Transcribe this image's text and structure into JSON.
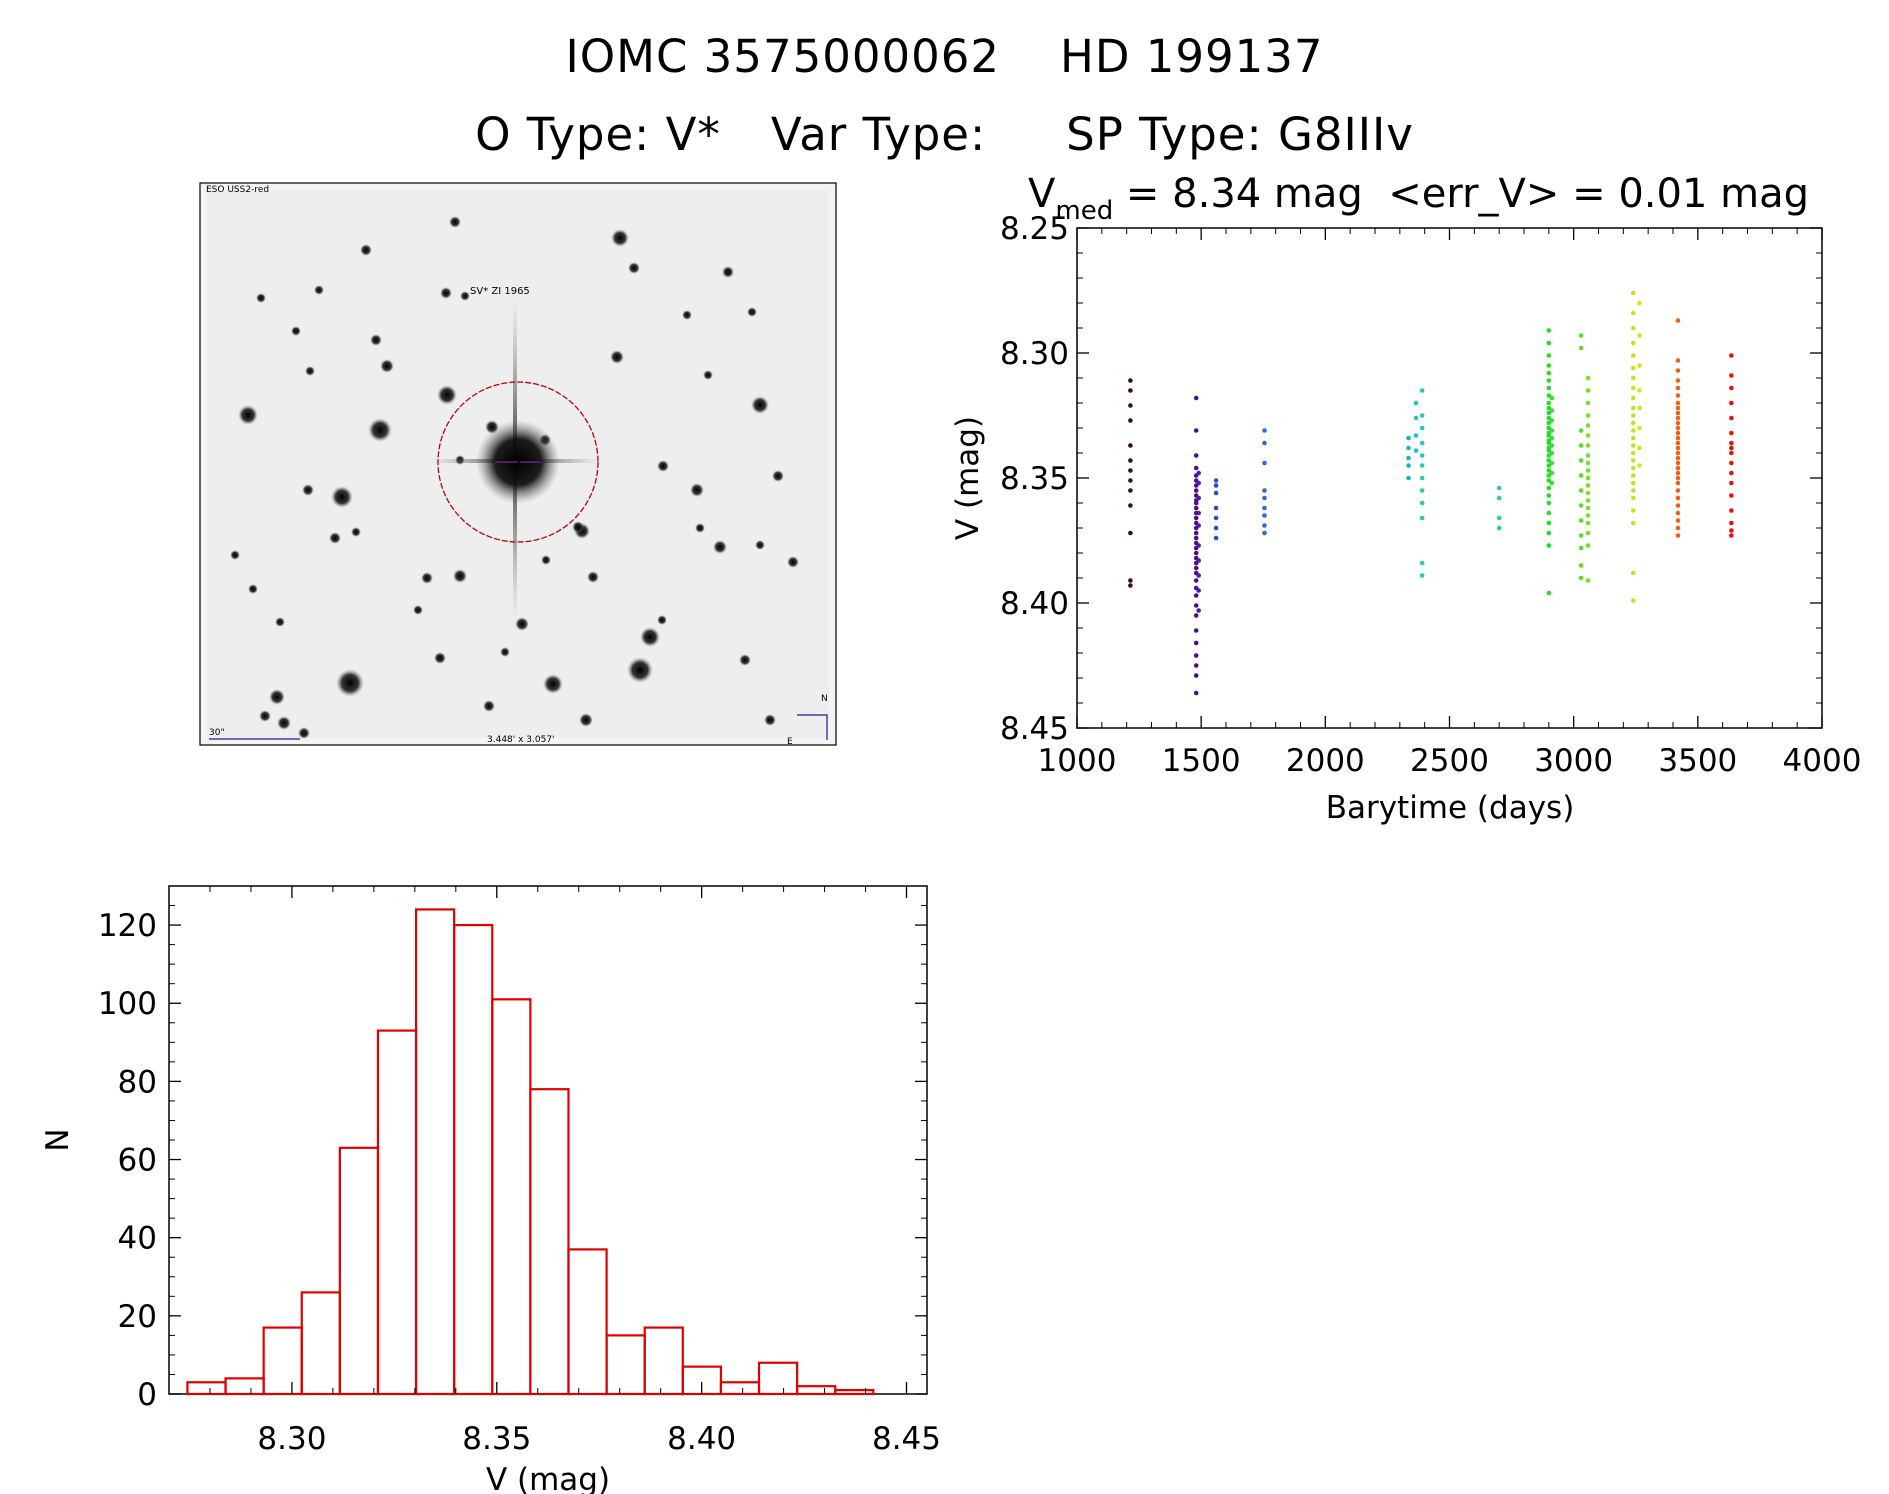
{
  "header": {
    "object_id": "IOMC 3575000062",
    "hd_name": "HD 199137",
    "o_type": "O Type: V*",
    "var_type": "Var Type:",
    "sp_type": "SP Type: G8IIIv"
  },
  "finder": {
    "top_left_label": "ESO USS2-red",
    "target_label": "SV* ZI 1965",
    "scale_label": "30\"",
    "size_label": "3.448' x 3.057'",
    "compass_n": "N",
    "compass_e": "E"
  },
  "chart_data": [
    {
      "type": "scatter",
      "title_prefix": "V",
      "title_subscript": "med",
      "title_rest": " = 8.34 mag  <err_V> = 0.01 mag",
      "xlabel": "Barytime (days)",
      "ylabel": "V (mag)",
      "xlim": [
        1000,
        4000
      ],
      "ylim": [
        8.45,
        8.25
      ],
      "y_inverted": true,
      "xticks": [
        "1000",
        "1500",
        "2000",
        "2500",
        "3000",
        "3500",
        "4000"
      ],
      "yticks": [
        "8.25",
        "8.30",
        "8.35",
        "8.40",
        "8.45"
      ],
      "groups": [
        {
          "x": 1215,
          "color": "#3a0a2a",
          "y": [
            8.311,
            8.315,
            8.321,
            8.327,
            8.337,
            8.343,
            8.347,
            8.351,
            8.355,
            8.361,
            8.372,
            8.391,
            8.393
          ]
        },
        {
          "x": 1480,
          "color": "#4b0f8a",
          "y": [
            8.318,
            8.331,
            8.341,
            8.346,
            8.349,
            8.351,
            8.353,
            8.355,
            8.357,
            8.359,
            8.36,
            8.362,
            8.364,
            8.366,
            8.368,
            8.37,
            8.372,
            8.374,
            8.376,
            8.378,
            8.38,
            8.382,
            8.384,
            8.386,
            8.388,
            8.391,
            8.394,
            8.397,
            8.401,
            8.405,
            8.411,
            8.416,
            8.421,
            8.425,
            8.429,
            8.436
          ]
        },
        {
          "x": 1490,
          "color": "#5a1aa0",
          "y": [
            8.348,
            8.352,
            8.358,
            8.364,
            8.369,
            8.377,
            8.383,
            8.389,
            8.395,
            8.403
          ]
        },
        {
          "x": 1560,
          "color": "#2a4bd0",
          "y": [
            8.351,
            8.353,
            8.356,
            8.362,
            8.366,
            8.37,
            8.374
          ]
        },
        {
          "x": 1755,
          "color": "#2a6ae0",
          "y": [
            8.331,
            8.336,
            8.344,
            8.355,
            8.358,
            8.362,
            8.365,
            8.369,
            8.372
          ]
        },
        {
          "x": 2335,
          "color": "#19b0d0",
          "y": [
            8.334,
            8.338,
            8.342,
            8.345,
            8.35
          ]
        },
        {
          "x": 2365,
          "color": "#1ac8c8",
          "y": [
            8.32,
            8.326,
            8.333,
            8.339
          ]
        },
        {
          "x": 2390,
          "color": "#1ad0b0",
          "y": [
            8.315,
            8.325,
            8.33,
            8.336,
            8.341,
            8.345,
            8.35,
            8.355,
            8.36,
            8.366,
            8.384,
            8.389
          ]
        },
        {
          "x": 2700,
          "color": "#2ad090",
          "y": [
            8.354,
            8.358,
            8.366,
            8.37
          ]
        },
        {
          "x": 2900,
          "color": "#22dd22",
          "y": [
            8.291,
            8.296,
            8.301,
            8.305,
            8.308,
            8.311,
            8.314,
            8.317,
            8.32,
            8.322,
            8.324,
            8.326,
            8.328,
            8.33,
            8.332,
            8.333,
            8.335,
            8.336,
            8.338,
            8.339,
            8.341,
            8.343,
            8.345,
            8.347,
            8.349,
            8.351,
            8.354,
            8.357,
            8.36,
            8.364,
            8.368,
            8.372,
            8.377,
            8.396
          ]
        },
        {
          "x": 2912,
          "color": "#33e033",
          "y": [
            8.318,
            8.323,
            8.327,
            8.331,
            8.334,
            8.337,
            8.34,
            8.344,
            8.348,
            8.352
          ]
        },
        {
          "x": 3030,
          "color": "#55e020",
          "y": [
            8.293,
            8.298,
            8.331,
            8.337,
            8.343,
            8.349,
            8.355,
            8.361,
            8.367,
            8.373,
            8.378,
            8.385,
            8.39
          ]
        },
        {
          "x": 3058,
          "color": "#77e020",
          "y": [
            8.31,
            8.315,
            8.32,
            8.325,
            8.329,
            8.333,
            8.337,
            8.341,
            8.344,
            8.347,
            8.35,
            8.353,
            8.356,
            8.359,
            8.362,
            8.365,
            8.368,
            8.372,
            8.377,
            8.391
          ]
        },
        {
          "x": 3240,
          "color": "#c8e020",
          "y": [
            8.276,
            8.284,
            8.29,
            8.296,
            8.301,
            8.306,
            8.31,
            8.314,
            8.318,
            8.322,
            8.325,
            8.328,
            8.331,
            8.334,
            8.337,
            8.34,
            8.343,
            8.346,
            8.349,
            8.352,
            8.355,
            8.358,
            8.363,
            8.368,
            8.388,
            8.399
          ]
        },
        {
          "x": 3265,
          "color": "#d8e020",
          "y": [
            8.28,
            8.293,
            8.305,
            8.315,
            8.322,
            8.33,
            8.338,
            8.345
          ]
        },
        {
          "x": 3420,
          "color": "#f06010",
          "y": [
            8.287,
            8.303,
            8.307,
            8.311,
            8.314,
            8.317,
            8.32,
            8.322,
            8.324,
            8.326,
            8.328,
            8.33,
            8.332,
            8.334,
            8.336,
            8.338,
            8.34,
            8.342,
            8.344,
            8.346,
            8.348,
            8.35,
            8.352,
            8.355,
            8.358,
            8.361,
            8.364,
            8.367,
            8.37,
            8.373
          ]
        },
        {
          "x": 3635,
          "color": "#e81010",
          "y": [
            8.301,
            8.309,
            8.314,
            8.32,
            8.326,
            8.332,
            8.336,
            8.338,
            8.34,
            8.344,
            8.348,
            8.352,
            8.357,
            8.363,
            8.368,
            8.371,
            8.373
          ]
        }
      ]
    },
    {
      "type": "bar",
      "histogram": true,
      "xlabel": "V (mag)",
      "ylabel": "N",
      "xlim": [
        8.27,
        8.455
      ],
      "ylim": [
        0,
        130
      ],
      "xticks": [
        "8.30",
        "8.35",
        "8.40",
        "8.45"
      ],
      "yticks": [
        "0",
        "20",
        "40",
        "60",
        "80",
        "100",
        "120"
      ],
      "bin_width": 0.0093,
      "bin_starts": [
        8.2745,
        8.2838,
        8.2931,
        8.3024,
        8.3117,
        8.321,
        8.3303,
        8.3396,
        8.3489,
        8.3582,
        8.3675,
        8.3768,
        8.3861,
        8.3954,
        8.4047,
        8.414,
        8.4233,
        8.4326
      ],
      "values": [
        3,
        4,
        17,
        26,
        63,
        93,
        124,
        120,
        101,
        78,
        37,
        15,
        17,
        7,
        3,
        8,
        2,
        1
      ],
      "bar_color": "#e00000"
    }
  ]
}
